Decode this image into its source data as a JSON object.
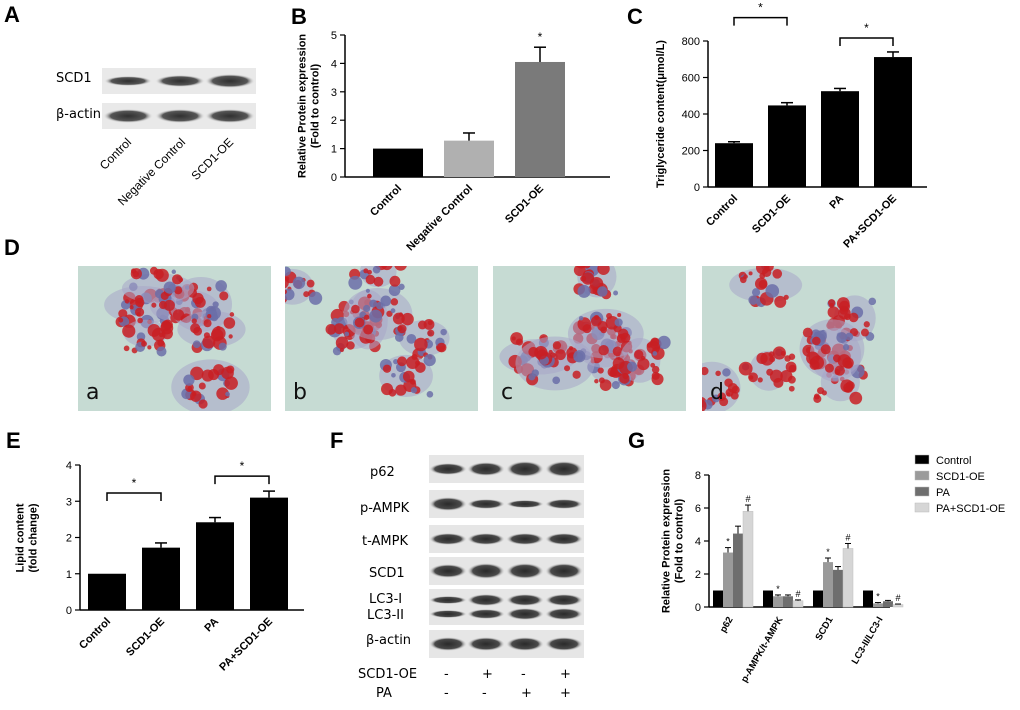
{
  "panels": {
    "A": "A",
    "B": "B",
    "C": "C",
    "D": "D",
    "E": "E",
    "F": "F",
    "G": "G"
  },
  "panelA": {
    "rows": [
      "SCD1",
      "β-actin"
    ],
    "lanes": [
      "Control",
      "Negative Control",
      "SCD1-OE"
    ]
  },
  "panelD": {
    "labels": [
      "a",
      "b",
      "c",
      "d"
    ]
  },
  "panelF": {
    "rows": [
      "p62",
      "p-AMPK",
      "t-AMPK",
      "SCD1",
      "LC3-I",
      "LC3-II",
      "β-actin"
    ],
    "treatments": [
      {
        "name": "SCD1-OE",
        "signs": [
          "-",
          "+",
          "-",
          "+"
        ]
      },
      {
        "name": "PA",
        "signs": [
          "-",
          "-",
          "+",
          "+"
        ]
      }
    ]
  },
  "colors": {
    "black": "#000000",
    "light_gray": "#b0b0b0",
    "mid_gray": "#7a7a7a",
    "gray": "#9a9a9a",
    "pale": "#d6d6d6",
    "stain_red": "#c81e23",
    "stain_blue": "#6b6fa8"
  },
  "chart_data": [
    {
      "id": "B",
      "type": "bar",
      "categories": [
        "Control",
        "Negative Control",
        "SCD1-OE"
      ],
      "values": [
        1.0,
        1.28,
        4.05
      ],
      "errors": [
        0,
        0.27,
        0.52
      ],
      "significance": [
        "",
        "",
        "*"
      ],
      "ylabel": "Relative Protein expression\n(Fold to control)",
      "ylim": [
        0,
        5
      ],
      "yticks": [
        0,
        1,
        2,
        3,
        4,
        5
      ],
      "bar_colors": [
        "#000000",
        "#b0b0b0",
        "#7a7a7a"
      ]
    },
    {
      "id": "C",
      "type": "bar",
      "categories": [
        "Control",
        "SCD1-OE",
        "PA",
        "PA+SCD1-OE"
      ],
      "values": [
        240,
        447,
        525,
        712
      ],
      "errors": [
        8,
        15,
        15,
        28
      ],
      "ylabel": "Triglyceride content(μmol/L)",
      "ylim": [
        0,
        800
      ],
      "yticks": [
        0,
        200,
        400,
        600,
        800
      ],
      "brackets": [
        {
          "from": 0,
          "to": 1,
          "label": "*"
        },
        {
          "from": 2,
          "to": 3,
          "label": "*"
        }
      ]
    },
    {
      "id": "E",
      "type": "bar",
      "categories": [
        "Control",
        "SCD1-OE",
        "PA",
        "PA+SCD1-OE"
      ],
      "values": [
        1.0,
        1.72,
        2.42,
        3.1
      ],
      "errors": [
        0,
        0.13,
        0.13,
        0.18
      ],
      "ylabel": "Lipid content\n(fold change)",
      "ylim": [
        0,
        4
      ],
      "yticks": [
        0,
        1,
        2,
        3,
        4
      ],
      "brackets": [
        {
          "from": 0,
          "to": 1,
          "label": "*"
        },
        {
          "from": 2,
          "to": 3,
          "label": "*"
        }
      ]
    },
    {
      "id": "G",
      "type": "bar",
      "categories": [
        "p62",
        "p-AMPK/t-AMPK",
        "SCD1",
        "LC3-II/LC3-I"
      ],
      "series": [
        {
          "name": "Control",
          "values": [
            1.0,
            1.0,
            1.0,
            1.0
          ],
          "errors": [
            0,
            0,
            0,
            0
          ],
          "color": "#000000",
          "marks": [
            "",
            "",
            "",
            ""
          ]
        },
        {
          "name": "SCD1-OE",
          "values": [
            3.3,
            0.65,
            2.72,
            0.22
          ],
          "errors": [
            0.3,
            0.08,
            0.25,
            0.05
          ],
          "color": "#9a9a9a",
          "marks": [
            "*",
            "*",
            "*",
            "*"
          ]
        },
        {
          "name": "PA",
          "values": [
            4.45,
            0.65,
            2.25,
            0.35
          ],
          "errors": [
            0.45,
            0.08,
            0.2,
            0.05
          ],
          "color": "#6e6e6e",
          "marks": [
            "",
            "",
            "",
            ""
          ]
        },
        {
          "name": "PA+SCD1-OE",
          "values": [
            5.8,
            0.38,
            3.55,
            0.15
          ],
          "errors": [
            0.38,
            0.05,
            0.3,
            0.03
          ],
          "color": "#d6d6d6",
          "marks": [
            "#",
            "#",
            "#",
            "#"
          ]
        }
      ],
      "ylabel": "Relative Protein expression\n(Fold to control)",
      "ylim": [
        0,
        8
      ],
      "yticks": [
        0,
        2,
        4,
        6,
        8
      ],
      "legend": "right"
    }
  ]
}
